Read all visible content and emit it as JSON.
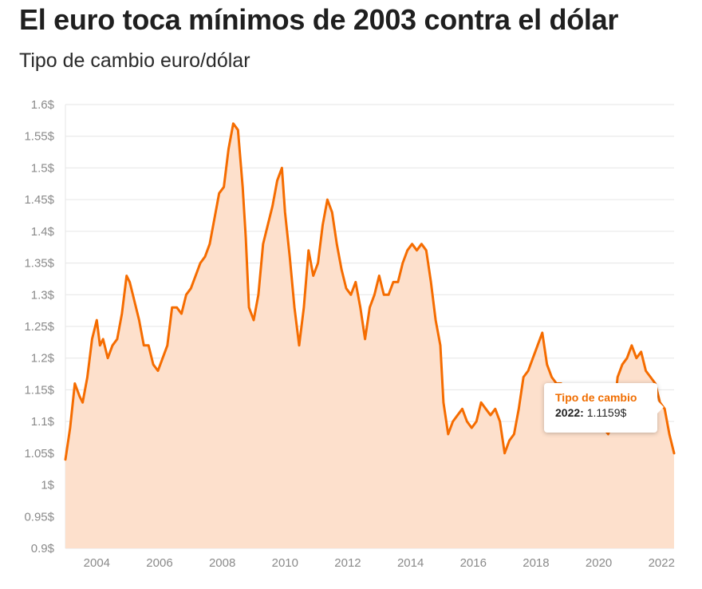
{
  "header": {
    "title": "El euro toca mínimos de 2003 contra el dólar",
    "subtitle": "Tipo de cambio euro/dólar"
  },
  "tooltip": {
    "series_name": "Tipo de cambio",
    "year": "2022:",
    "value": "1.1159$"
  },
  "colors": {
    "line": "#f56c00",
    "fill": "#fde0cc",
    "grid": "#e6e6e6"
  },
  "chart_data": {
    "type": "area",
    "title": "El euro toca mínimos de 2003 contra el dólar",
    "subtitle": "Tipo de cambio euro/dólar",
    "xlabel": "",
    "ylabel": "",
    "xlim": [
      2003.0,
      2022.4
    ],
    "ylim": [
      0.9,
      1.6
    ],
    "grid": true,
    "y_ticks": [
      0.9,
      0.95,
      1.0,
      1.05,
      1.1,
      1.15,
      1.2,
      1.25,
      1.3,
      1.35,
      1.4,
      1.45,
      1.5,
      1.55,
      1.6
    ],
    "y_tick_labels": [
      "0.9$",
      "0.95$",
      "1$",
      "1.05$",
      "1.1$",
      "1.15$",
      "1.2$",
      "1.25$",
      "1.3$",
      "1.35$",
      "1.4$",
      "1.45$",
      "1.5$",
      "1.55$",
      "1.6$"
    ],
    "x_ticks": [
      2004,
      2006,
      2008,
      2010,
      2012,
      2014,
      2016,
      2018,
      2020,
      2022
    ],
    "x_tick_labels": [
      "2004",
      "2006",
      "2008",
      "2010",
      "2012",
      "2014",
      "2016",
      "2018",
      "2020",
      "2022"
    ],
    "series": [
      {
        "name": "Tipo de cambio",
        "x": [
          2003.0,
          2003.15,
          2003.3,
          2003.45,
          2003.55,
          2003.7,
          2003.85,
          2004.0,
          2004.1,
          2004.2,
          2004.35,
          2004.5,
          2004.65,
          2004.8,
          2004.95,
          2005.05,
          2005.2,
          2005.35,
          2005.5,
          2005.65,
          2005.8,
          2005.95,
          2006.1,
          2006.25,
          2006.4,
          2006.55,
          2006.7,
          2006.85,
          2007.0,
          2007.15,
          2007.3,
          2007.45,
          2007.6,
          2007.75,
          2007.9,
          2008.05,
          2008.2,
          2008.35,
          2008.5,
          2008.65,
          2008.75,
          2008.85,
          2009.0,
          2009.15,
          2009.3,
          2009.45,
          2009.6,
          2009.75,
          2009.9,
          2010.0,
          2010.15,
          2010.3,
          2010.45,
          2010.6,
          2010.75,
          2010.9,
          2011.05,
          2011.2,
          2011.35,
          2011.5,
          2011.65,
          2011.8,
          2011.95,
          2012.1,
          2012.25,
          2012.4,
          2012.55,
          2012.7,
          2012.85,
          2013.0,
          2013.15,
          2013.3,
          2013.45,
          2013.6,
          2013.75,
          2013.9,
          2014.05,
          2014.2,
          2014.35,
          2014.5,
          2014.65,
          2014.8,
          2014.95,
          2015.05,
          2015.2,
          2015.35,
          2015.5,
          2015.65,
          2015.8,
          2015.95,
          2016.1,
          2016.25,
          2016.4,
          2016.55,
          2016.7,
          2016.85,
          2017.0,
          2017.15,
          2017.3,
          2017.45,
          2017.6,
          2017.75,
          2017.9,
          2018.05,
          2018.2,
          2018.35,
          2018.5,
          2018.65,
          2018.8,
          2018.95,
          2019.1,
          2019.25,
          2019.4,
          2019.55,
          2019.7,
          2019.85,
          2020.0,
          2020.15,
          2020.3,
          2020.45,
          2020.6,
          2020.75,
          2020.9,
          2021.05,
          2021.2,
          2021.35,
          2021.5,
          2021.65,
          2021.8,
          2021.95,
          2022.1,
          2022.25,
          2022.4
        ],
        "values": [
          1.04,
          1.09,
          1.16,
          1.14,
          1.13,
          1.17,
          1.23,
          1.26,
          1.22,
          1.23,
          1.2,
          1.22,
          1.23,
          1.27,
          1.33,
          1.32,
          1.29,
          1.26,
          1.22,
          1.22,
          1.19,
          1.18,
          1.2,
          1.22,
          1.28,
          1.28,
          1.27,
          1.3,
          1.31,
          1.33,
          1.35,
          1.36,
          1.38,
          1.42,
          1.46,
          1.47,
          1.53,
          1.57,
          1.56,
          1.47,
          1.39,
          1.28,
          1.26,
          1.3,
          1.38,
          1.41,
          1.44,
          1.48,
          1.5,
          1.43,
          1.36,
          1.28,
          1.22,
          1.28,
          1.37,
          1.33,
          1.35,
          1.41,
          1.45,
          1.43,
          1.38,
          1.34,
          1.31,
          1.3,
          1.32,
          1.28,
          1.23,
          1.28,
          1.3,
          1.33,
          1.3,
          1.3,
          1.32,
          1.32,
          1.35,
          1.37,
          1.38,
          1.37,
          1.38,
          1.37,
          1.32,
          1.26,
          1.22,
          1.13,
          1.08,
          1.1,
          1.11,
          1.12,
          1.1,
          1.09,
          1.1,
          1.13,
          1.12,
          1.11,
          1.12,
          1.1,
          1.05,
          1.07,
          1.08,
          1.12,
          1.17,
          1.18,
          1.2,
          1.22,
          1.24,
          1.19,
          1.17,
          1.16,
          1.16,
          1.14,
          1.13,
          1.12,
          1.13,
          1.12,
          1.11,
          1.1,
          1.11,
          1.09,
          1.08,
          1.1,
          1.17,
          1.19,
          1.2,
          1.22,
          1.2,
          1.21,
          1.18,
          1.17,
          1.16,
          1.13,
          1.12,
          1.08,
          1.05
        ]
      }
    ]
  }
}
